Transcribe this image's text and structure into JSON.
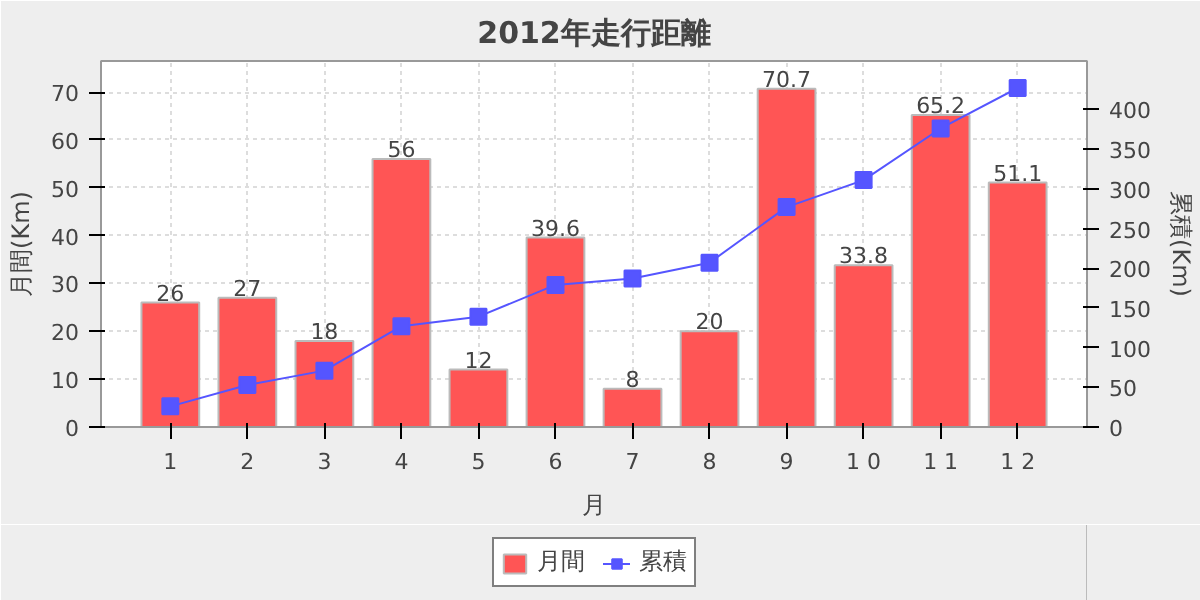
{
  "chart_data": {
    "type": "bar",
    "title": "2012年走行距離",
    "xlabel": "月",
    "ylabel": "月間(Km)",
    "y2label": "累積(Km)",
    "categories": [
      "1",
      "2",
      "3",
      "4",
      "5",
      "6",
      "7",
      "8",
      "9",
      "1 0",
      "1 1",
      "1 2"
    ],
    "series": [
      {
        "name": "月間",
        "color": "#ff5555",
        "values": [
          26,
          27,
          18,
          56,
          12,
          39.6,
          8,
          20,
          70.7,
          33.8,
          65.2,
          51.1
        ],
        "value_labels": [
          "26",
          "27",
          "18",
          "56",
          "12",
          "39.6",
          "8",
          "20",
          "70.7",
          "33.8",
          "65.2",
          "51.1"
        ]
      },
      {
        "name": "累積",
        "type": "line",
        "axis": "y2",
        "color": "#5555ff",
        "marker": "square",
        "values": [
          26,
          53,
          71,
          127,
          139,
          179,
          187,
          207,
          277,
          311,
          376,
          427
        ]
      }
    ],
    "ylim": [
      0,
      76.5
    ],
    "yticks": [
      0,
      10,
      20,
      30,
      40,
      50,
      60,
      70
    ],
    "y2lim": [
      0,
      461
    ],
    "y2ticks": [
      0,
      50,
      100,
      150,
      200,
      250,
      300,
      350,
      400
    ],
    "grid": true,
    "legend": "bottom"
  }
}
